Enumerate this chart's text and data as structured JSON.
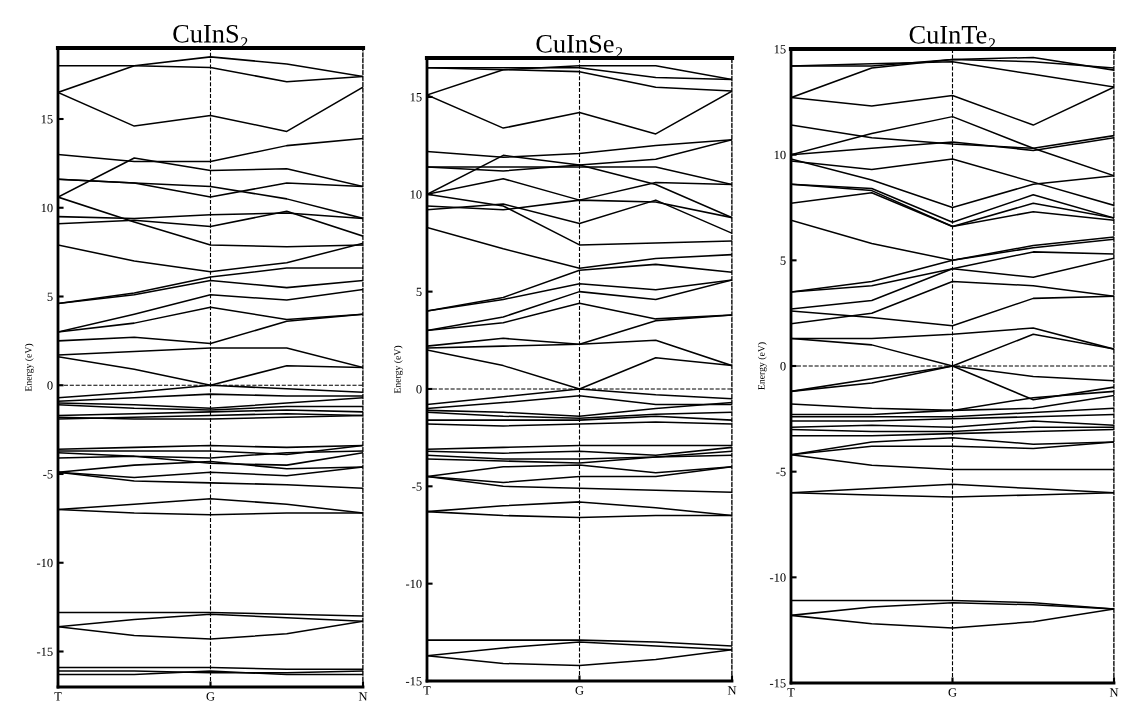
{
  "chart_data": [
    {
      "type": "line",
      "title": "CuInS₂",
      "ylabel": "Energy (eV)",
      "categories": [
        "T",
        null,
        "G",
        null,
        "N"
      ],
      "ylim": [
        -17,
        19
      ],
      "yticks": [
        -15,
        -10,
        -5,
        0,
        5,
        10,
        15
      ],
      "grid": "x",
      "line_style": "solid",
      "color": "#000000",
      "ref_lines": [
        {
          "axis": "y",
          "value": 0,
          "line_style": "dashed",
          "color": "#000000"
        }
      ],
      "series": [
        {
          "values": [
            18.0,
            18.0,
            17.9,
            17.1,
            17.4
          ]
        },
        {
          "values": [
            16.5,
            18.0,
            18.5,
            18.1,
            17.4
          ]
        },
        {
          "values": [
            16.5,
            14.6,
            15.2,
            14.3,
            16.8
          ]
        },
        {
          "values": [
            13.0,
            12.6,
            12.6,
            13.5,
            13.9
          ]
        },
        {
          "values": [
            10.6,
            12.8,
            12.1,
            12.2,
            11.2
          ]
        },
        {
          "values": [
            11.6,
            11.4,
            11.2,
            10.5,
            9.4
          ]
        },
        {
          "values": [
            11.6,
            11.4,
            10.6,
            11.4,
            11.2
          ]
        },
        {
          "values": [
            9.5,
            9.4,
            9.6,
            9.7,
            9.4
          ]
        },
        {
          "values": [
            9.1,
            9.3,
            8.95,
            9.8,
            8.4
          ]
        },
        {
          "values": [
            10.6,
            9.2,
            7.9,
            7.8,
            7.9
          ]
        },
        {
          "values": [
            7.9,
            7.0,
            6.4,
            6.9,
            8.0
          ]
        },
        {
          "values": [
            4.6,
            5.2,
            6.1,
            6.6,
            6.6
          ]
        },
        {
          "values": [
            4.6,
            5.1,
            5.9,
            5.5,
            5.9
          ]
        },
        {
          "values": [
            3.0,
            4.0,
            5.1,
            4.8,
            5.4
          ]
        },
        {
          "values": [
            3.0,
            3.5,
            4.4,
            3.7,
            4.0
          ]
        },
        {
          "values": [
            2.5,
            2.7,
            2.35,
            3.6,
            4.0
          ]
        },
        {
          "values": [
            1.7,
            1.9,
            2.1,
            2.1,
            1.0
          ]
        },
        {
          "values": [
            1.6,
            0.9,
            0.0,
            1.1,
            1.0
          ]
        },
        {
          "values": [
            -0.7,
            -0.4,
            0.0,
            -0.2,
            -0.4
          ]
        },
        {
          "values": [
            -0.9,
            -0.7,
            -0.5,
            -0.6,
            -0.6
          ]
        },
        {
          "values": [
            -1.0,
            -1.1,
            -1.3,
            -1.0,
            -0.7
          ]
        },
        {
          "values": [
            -1.1,
            -1.3,
            -1.4,
            -1.2,
            -1.2
          ]
        },
        {
          "values": [
            -1.7,
            -1.6,
            -1.5,
            -1.4,
            -1.5
          ]
        },
        {
          "values": [
            -1.9,
            -1.8,
            -1.7,
            -1.6,
            -1.7
          ]
        },
        {
          "values": [
            -1.8,
            -1.9,
            -1.9,
            -1.8,
            -1.7
          ]
        },
        {
          "values": [
            -3.6,
            -3.5,
            -3.4,
            -3.5,
            -3.4
          ]
        },
        {
          "values": [
            -3.7,
            -3.7,
            -3.7,
            -3.9,
            -3.4
          ]
        },
        {
          "values": [
            -3.8,
            -4.0,
            -4.1,
            -3.8,
            -3.7
          ]
        },
        {
          "values": [
            -4.1,
            -4.0,
            -4.4,
            -4.5,
            -3.8
          ]
        },
        {
          "values": [
            -4.9,
            -4.5,
            -4.3,
            -4.7,
            -4.6
          ]
        },
        {
          "values": [
            -4.9,
            -5.2,
            -4.9,
            -5.1,
            -4.6
          ]
        },
        {
          "values": [
            -4.9,
            -5.4,
            -5.5,
            -5.6,
            -5.8
          ]
        },
        {
          "values": [
            -7.0,
            -6.7,
            -6.4,
            -6.7,
            -7.2
          ]
        },
        {
          "values": [
            -7.0,
            -7.2,
            -7.3,
            -7.2,
            -7.2
          ]
        },
        {
          "values": [
            -12.8,
            -12.8,
            -12.8,
            -12.9,
            -13.0
          ]
        },
        {
          "values": [
            -13.6,
            -13.2,
            -12.9,
            -13.1,
            -13.3
          ]
        },
        {
          "values": [
            -13.6,
            -14.1,
            -14.3,
            -14.0,
            -13.3
          ]
        },
        {
          "values": [
            -15.9,
            -15.9,
            -15.9,
            -16.0,
            -16.0
          ]
        },
        {
          "values": [
            -16.1,
            -16.1,
            -16.2,
            -16.2,
            -16.1
          ]
        },
        {
          "values": [
            -16.3,
            -16.3,
            -16.1,
            -16.3,
            -16.3
          ]
        }
      ]
    },
    {
      "type": "line",
      "title": "CuInSe₂",
      "ylabel": "Energy (eV)",
      "categories": [
        "T",
        null,
        "G",
        null,
        "N"
      ],
      "ylim": [
        -15,
        17
      ],
      "yticks": [
        -15,
        -10,
        -5,
        0,
        5,
        10,
        15
      ],
      "grid": "x",
      "line_style": "solid",
      "color": "#000000",
      "ref_lines": [
        {
          "axis": "y",
          "value": 0,
          "line_style": "dashed",
          "color": "#000000"
        }
      ],
      "series": [
        {
          "values": [
            16.5,
            16.5,
            16.5,
            16.0,
            15.9
          ]
        },
        {
          "values": [
            15.1,
            16.4,
            16.6,
            16.6,
            15.9
          ]
        },
        {
          "values": [
            16.5,
            16.4,
            16.3,
            15.5,
            15.3
          ]
        },
        {
          "values": [
            15.1,
            13.4,
            14.2,
            13.1,
            15.3
          ]
        },
        {
          "values": [
            12.2,
            11.9,
            12.1,
            12.5,
            12.8
          ]
        },
        {
          "values": [
            10.0,
            12.0,
            11.5,
            11.8,
            12.8
          ]
        },
        {
          "values": [
            11.4,
            11.4,
            11.4,
            11.4,
            10.5
          ]
        },
        {
          "values": [
            11.4,
            11.2,
            11.5,
            10.5,
            8.8
          ]
        },
        {
          "values": [
            10.0,
            10.8,
            9.7,
            10.6,
            10.5
          ]
        },
        {
          "values": [
            9.4,
            9.2,
            9.7,
            9.6,
            8.8
          ]
        },
        {
          "values": [
            9.2,
            9.5,
            8.5,
            9.7,
            8.0
          ]
        },
        {
          "values": [
            10.0,
            9.4,
            7.4,
            7.5,
            7.6
          ]
        },
        {
          "values": [
            8.3,
            7.2,
            6.2,
            6.7,
            6.9
          ]
        },
        {
          "values": [
            4.0,
            4.7,
            6.1,
            6.4,
            6.0
          ]
        },
        {
          "values": [
            4.0,
            4.6,
            5.4,
            5.1,
            5.6
          ]
        },
        {
          "values": [
            3.0,
            3.7,
            5.0,
            4.6,
            5.6
          ]
        },
        {
          "values": [
            3.0,
            3.4,
            4.4,
            3.6,
            3.8
          ]
        },
        {
          "values": [
            2.2,
            2.6,
            2.3,
            3.5,
            3.8
          ]
        },
        {
          "values": [
            2.1,
            2.2,
            2.3,
            2.5,
            1.2
          ]
        },
        {
          "values": [
            2.0,
            1.2,
            0.0,
            1.6,
            1.2
          ]
        },
        {
          "values": [
            -0.8,
            -0.4,
            0.0,
            -0.3,
            -0.5
          ]
        },
        {
          "values": [
            -1.0,
            -0.7,
            -0.35,
            -0.8,
            -0.8
          ]
        },
        {
          "values": [
            -1.1,
            -1.2,
            -1.4,
            -1.0,
            -0.7
          ]
        },
        {
          "values": [
            -1.2,
            -1.4,
            -1.5,
            -1.3,
            -1.2
          ]
        },
        {
          "values": [
            -1.6,
            -1.6,
            -1.6,
            -1.4,
            -1.6
          ]
        },
        {
          "values": [
            -1.8,
            -1.9,
            -1.8,
            -1.7,
            -1.8
          ]
        },
        {
          "values": [
            -3.1,
            -3.0,
            -2.9,
            -2.9,
            -2.9
          ]
        },
        {
          "values": [
            -3.2,
            -3.3,
            -3.2,
            -3.4,
            -3.0
          ]
        },
        {
          "values": [
            -3.4,
            -3.6,
            -3.6,
            -3.5,
            -3.2
          ]
        },
        {
          "values": [
            -3.6,
            -3.7,
            -3.8,
            -3.5,
            -3.4
          ]
        },
        {
          "values": [
            -4.5,
            -4.0,
            -3.9,
            -4.3,
            -4.0
          ]
        },
        {
          "values": [
            -4.5,
            -4.8,
            -4.5,
            -4.5,
            -4.0
          ]
        },
        {
          "values": [
            -4.5,
            -5.0,
            -5.1,
            -5.2,
            -5.3
          ]
        },
        {
          "values": [
            -6.3,
            -6.0,
            -5.8,
            -6.1,
            -6.5
          ]
        },
        {
          "values": [
            -6.3,
            -6.5,
            -6.6,
            -6.5,
            -6.5
          ]
        },
        {
          "values": [
            -12.9,
            -12.9,
            -12.9,
            -13.0,
            -13.2
          ]
        },
        {
          "values": [
            -13.7,
            -13.3,
            -13.0,
            -13.2,
            -13.4
          ]
        },
        {
          "values": [
            -13.7,
            -14.1,
            -14.2,
            -13.9,
            -13.4
          ]
        }
      ]
    },
    {
      "type": "line",
      "title": "CuInTe₂",
      "ylabel": "Energy (eV)",
      "categories": [
        "T",
        null,
        "G",
        null,
        "N"
      ],
      "ylim": [
        -15,
        15
      ],
      "yticks": [
        -15,
        -10,
        -5,
        0,
        5,
        10,
        15
      ],
      "grid": "x",
      "line_style": "solid",
      "color": "#000000",
      "ref_lines": [
        {
          "axis": "y",
          "value": 0,
          "line_style": "dashed",
          "color": "#000000"
        }
      ],
      "series": [
        {
          "values": [
            14.2,
            14.2,
            14.5,
            14.4,
            14.1
          ]
        },
        {
          "values": [
            12.7,
            14.1,
            14.5,
            14.6,
            14.0
          ]
        },
        {
          "values": [
            14.2,
            14.3,
            14.4,
            13.8,
            13.2
          ]
        },
        {
          "values": [
            12.7,
            12.3,
            12.8,
            11.4,
            13.2
          ]
        },
        {
          "values": [
            10.0,
            11.0,
            11.8,
            10.3,
            10.9
          ]
        },
        {
          "values": [
            11.4,
            10.8,
            10.5,
            10.3,
            9.0
          ]
        },
        {
          "values": [
            10.0,
            10.3,
            10.6,
            10.2,
            10.8
          ]
        },
        {
          "values": [
            9.7,
            9.3,
            9.8,
            8.7,
            7.6
          ]
        },
        {
          "values": [
            9.8,
            8.8,
            7.5,
            8.6,
            9.0
          ]
        },
        {
          "values": [
            8.6,
            8.4,
            6.8,
            8.1,
            7.0
          ]
        },
        {
          "values": [
            8.6,
            8.3,
            6.6,
            7.7,
            7.0
          ]
        },
        {
          "values": [
            7.7,
            8.2,
            6.6,
            7.3,
            6.9
          ]
        },
        {
          "values": [
            6.9,
            5.8,
            5.0,
            5.6,
            6.0
          ]
        },
        {
          "values": [
            3.5,
            4.0,
            5.0,
            5.7,
            6.1
          ]
        },
        {
          "values": [
            3.5,
            3.8,
            4.6,
            5.4,
            5.3
          ]
        },
        {
          "values": [
            2.7,
            3.1,
            4.6,
            4.2,
            5.1
          ]
        },
        {
          "values": [
            2.6,
            2.3,
            1.9,
            3.2,
            3.3
          ]
        },
        {
          "values": [
            2.0,
            2.5,
            4.0,
            3.8,
            3.3
          ]
        },
        {
          "values": [
            1.3,
            1.3,
            1.5,
            1.8,
            0.8
          ]
        },
        {
          "values": [
            1.3,
            1.0,
            0.0,
            1.5,
            0.8
          ]
        },
        {
          "values": [
            -1.2,
            -0.6,
            0.0,
            -0.5,
            -0.7
          ]
        },
        {
          "values": [
            -1.2,
            -0.8,
            0.0,
            -1.6,
            -1.0
          ]
        },
        {
          "values": [
            -1.8,
            -2.0,
            -2.1,
            -1.5,
            -1.2
          ]
        },
        {
          "values": [
            -2.3,
            -2.3,
            -2.1,
            -2.0,
            -1.4
          ]
        },
        {
          "values": [
            -2.4,
            -2.4,
            -2.4,
            -2.2,
            -2.0
          ]
        },
        {
          "values": [
            -2.6,
            -2.6,
            -2.5,
            -2.4,
            -2.3
          ]
        },
        {
          "values": [
            -2.9,
            -2.8,
            -2.9,
            -2.6,
            -2.8
          ]
        },
        {
          "values": [
            -3.0,
            -3.1,
            -3.1,
            -2.9,
            -2.9
          ]
        },
        {
          "values": [
            -3.3,
            -3.3,
            -3.2,
            -3.1,
            -3.0
          ]
        },
        {
          "values": [
            -4.2,
            -3.6,
            -3.4,
            -3.7,
            -3.6
          ]
        },
        {
          "values": [
            -4.2,
            -3.8,
            -3.8,
            -3.9,
            -3.6
          ]
        },
        {
          "values": [
            -4.2,
            -4.7,
            -4.9,
            -4.9,
            -4.9
          ]
        },
        {
          "values": [
            -6.0,
            -5.8,
            -5.6,
            -5.8,
            -6.0
          ]
        },
        {
          "values": [
            -6.0,
            -6.1,
            -6.2,
            -6.1,
            -6.0
          ]
        },
        {
          "values": [
            -11.1,
            -11.1,
            -11.1,
            -11.2,
            -11.5
          ]
        },
        {
          "values": [
            -11.8,
            -11.4,
            -11.2,
            -11.3,
            -11.5
          ]
        },
        {
          "values": [
            -11.8,
            -12.2,
            -12.4,
            -12.1,
            -11.5
          ]
        }
      ]
    }
  ]
}
